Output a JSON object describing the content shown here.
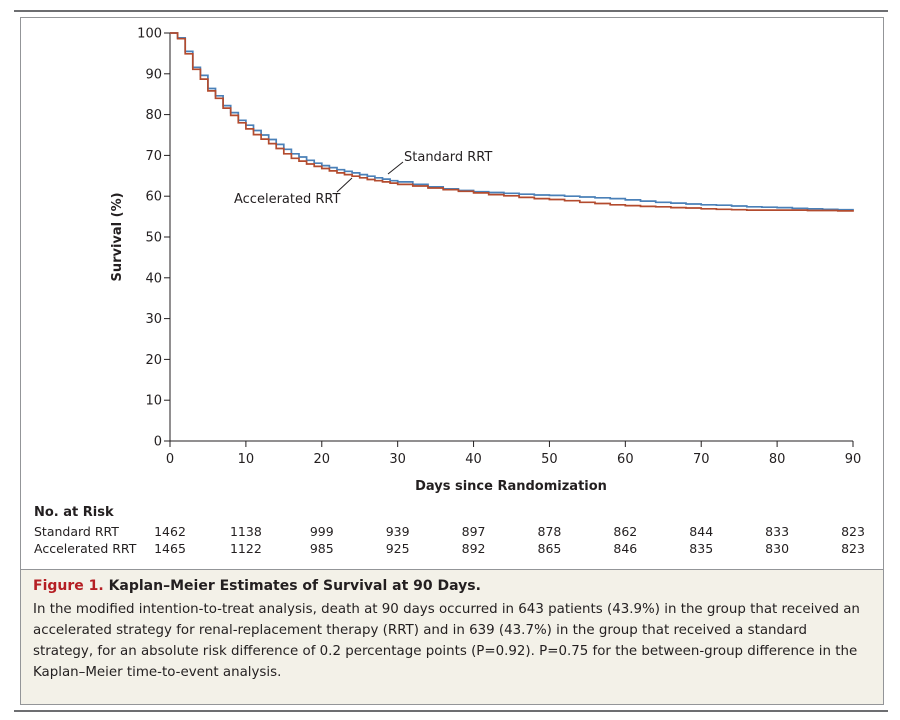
{
  "chart_data": {
    "type": "line",
    "xlabel": "Days since Randomization",
    "ylabel": "Survival (%)",
    "xlim": [
      0,
      90
    ],
    "ylim": [
      0,
      100
    ],
    "xticks": [
      0,
      10,
      20,
      30,
      40,
      50,
      60,
      70,
      80,
      90
    ],
    "yticks": [
      0,
      10,
      20,
      30,
      40,
      50,
      60,
      70,
      80,
      90,
      100
    ],
    "series": [
      {
        "name": "Standard RRT",
        "color": "#4a80b8",
        "x": [
          0,
          1,
          2,
          3,
          4,
          5,
          6,
          7,
          8,
          9,
          10,
          11,
          12,
          13,
          14,
          15,
          16,
          17,
          18,
          19,
          20,
          21,
          22,
          23,
          24,
          25,
          26,
          27,
          28,
          29,
          30,
          32,
          34,
          36,
          38,
          40,
          42,
          44,
          46,
          48,
          50,
          52,
          54,
          56,
          58,
          60,
          62,
          64,
          66,
          68,
          70,
          72,
          74,
          76,
          78,
          80,
          82,
          84,
          86,
          88,
          90
        ],
        "y": [
          100,
          98.8,
          95.5,
          91.6,
          89.6,
          86.4,
          84.6,
          82.2,
          80.5,
          78.6,
          77.4,
          76.1,
          75,
          73.9,
          72.7,
          71.5,
          70.4,
          69.6,
          68.8,
          68.1,
          67.5,
          67,
          66.5,
          66.1,
          65.7,
          65.3,
          64.9,
          64.5,
          64.2,
          63.8,
          63.5,
          62.9,
          62.3,
          61.8,
          61.4,
          61.1,
          60.9,
          60.7,
          60.5,
          60.3,
          60.2,
          60,
          59.8,
          59.6,
          59.4,
          59.1,
          58.8,
          58.5,
          58.3,
          58.1,
          57.9,
          57.8,
          57.6,
          57.4,
          57.3,
          57.2,
          57,
          56.9,
          56.8,
          56.7,
          56.5
        ]
      },
      {
        "name": "Accelerated RRT",
        "color": "#b34b2e",
        "x": [
          0,
          1,
          2,
          3,
          4,
          5,
          6,
          7,
          8,
          9,
          10,
          11,
          12,
          13,
          14,
          15,
          16,
          17,
          18,
          19,
          20,
          21,
          22,
          23,
          24,
          25,
          26,
          27,
          28,
          29,
          30,
          32,
          34,
          36,
          38,
          40,
          42,
          44,
          46,
          48,
          50,
          52,
          54,
          56,
          58,
          60,
          62,
          64,
          66,
          68,
          70,
          72,
          74,
          76,
          78,
          80,
          82,
          84,
          86,
          88,
          90
        ],
        "y": [
          100,
          98.6,
          94.9,
          91.1,
          88.7,
          85.8,
          84,
          81.6,
          79.8,
          78,
          76.5,
          75.1,
          74,
          72.9,
          71.7,
          70.4,
          69.3,
          68.6,
          67.9,
          67.3,
          66.8,
          66.2,
          65.7,
          65.3,
          64.9,
          64.5,
          64.1,
          63.8,
          63.5,
          63.2,
          62.9,
          62.5,
          62,
          61.6,
          61.2,
          60.8,
          60.4,
          60.1,
          59.7,
          59.4,
          59.2,
          58.9,
          58.5,
          58.2,
          57.9,
          57.7,
          57.5,
          57.4,
          57.2,
          57.1,
          56.9,
          56.8,
          56.7,
          56.6,
          56.6,
          56.6,
          56.6,
          56.5,
          56.5,
          56.4,
          56.2
        ]
      }
    ],
    "annotations": {
      "standard": "Standard RRT",
      "accelerated": "Accelerated RRT"
    },
    "risk_table": {
      "title": "No. at Risk",
      "days": [
        0,
        10,
        20,
        30,
        40,
        50,
        60,
        70,
        80,
        90
      ],
      "rows": [
        {
          "label": "Standard RRT",
          "values": [
            "1462",
            "1138",
            "999",
            "939",
            "897",
            "878",
            "862",
            "844",
            "833",
            "823"
          ]
        },
        {
          "label": "Accelerated RRT",
          "values": [
            "1465",
            "1122",
            "985",
            "925",
            "892",
            "865",
            "846",
            "835",
            "830",
            "823"
          ]
        }
      ]
    }
  },
  "caption": {
    "figure_label": "Figure 1.",
    "title": "Kaplan–Meier Estimates of Survival at 90 Days.",
    "text": "In the modified intention-to-treat analysis, death at 90 days occurred in 643 patients (43.9%) in the group that received an accelerated strategy for renal-replacement therapy (RRT) and in 639 (43.7%) in the group that received a standard strategy, for an absolute risk difference of 0.2 percentage points (P=0.92). P=0.75 for the between-group difference in the Kaplan–Meier time-to-event analysis."
  }
}
